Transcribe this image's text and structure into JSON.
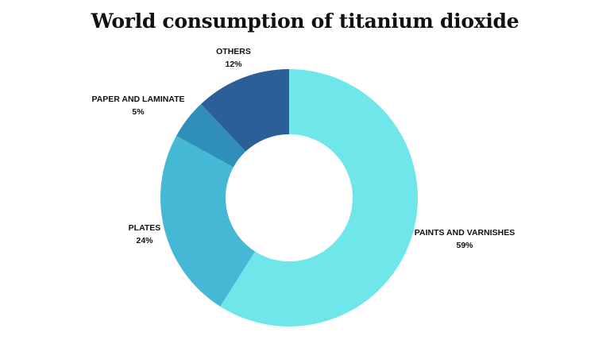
{
  "chart_data": {
    "type": "pie",
    "title": "World consumption of titanium dioxide",
    "donut": true,
    "slices": [
      {
        "label": "PAINTS AND VARNISHES",
        "value": 59,
        "value_label": "59%",
        "color": "#6ee6ea"
      },
      {
        "label": "PLATES",
        "value": 24,
        "value_label": "24%",
        "color": "#45b8d6"
      },
      {
        "label": "PAPER AND LAMINATE",
        "value": 5,
        "value_label": "5%",
        "color": "#2f8fba"
      },
      {
        "label": "OTHERS",
        "value": 12,
        "value_label": "12%",
        "color": "#2c5f97"
      }
    ]
  }
}
